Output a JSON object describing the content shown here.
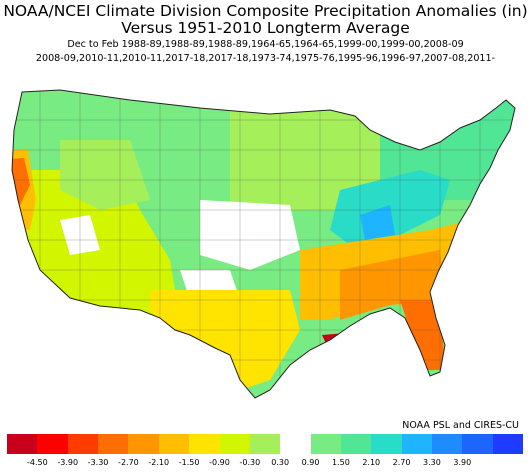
{
  "title_line1": "NOAA/NCEI Climate Division Composite Precipitation Anomalies (in)",
  "title_line2": "Versus 1951-2010 Longterm Average",
  "subtitle_line1": "Dec to Feb  1988-89,1988-89,1988-89,1964-65,1964-65,1999-00,1999-00,2008-09",
  "subtitle_line2": "2008-09,2010-11,2010-11,2017-18,2017-18,1973-74,1975-76,1995-96,1996-97,2007-08,2011-",
  "credit": "NOAA PSL and CIRES-CU",
  "colorbar": {
    "tick_labels": [
      "-4.50",
      "-3.90",
      "-3.30",
      "-2.70",
      "-2.10",
      "-1.50",
      "-0.90",
      "-0.30",
      "0.30",
      "0.90",
      "1.50",
      "2.10",
      "2.70",
      "3.30",
      "3.90"
    ],
    "colors": [
      "#c8001c",
      "#ff0000",
      "#ff3c00",
      "#ff6e00",
      "#ff9600",
      "#ffbe00",
      "#ffe400",
      "#d2f500",
      "#a5f05a",
      "#ffffff",
      "#78eb82",
      "#50e696",
      "#28dcc8",
      "#1eb4ff",
      "#1e8cff",
      "#1e64ff",
      "#1e3cff"
    ]
  },
  "map": {
    "region": "Contiguous United States",
    "pattern": [
      {
        "area": "Pacific Northwest and Northern Rockies",
        "color": "#78eb82"
      },
      {
        "area": "Northern California coast",
        "color": "#ff6e00"
      },
      {
        "area": "California and Nevada",
        "color": "#d2f500"
      },
      {
        "area": "Southwest",
        "color": "#d2f500"
      },
      {
        "area": "Central Plains",
        "color": "#ffffff"
      },
      {
        "area": "Ohio Valley and Tennessee",
        "color": "#28dcc8"
      },
      {
        "area": "Northeast and Great Lakes",
        "color": "#50e696"
      },
      {
        "area": "Southeast and Gulf Coast",
        "color": "#ff9600"
      },
      {
        "area": "Southern Louisiana",
        "color": "#c8001c"
      },
      {
        "area": "Texas",
        "color": "#ffe400"
      }
    ]
  }
}
